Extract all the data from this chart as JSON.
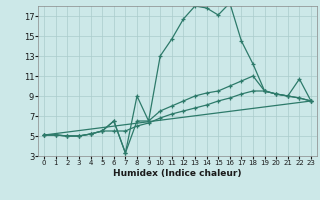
{
  "xlabel": "Humidex (Indice chaleur)",
  "xlim": [
    -0.5,
    23.5
  ],
  "ylim": [
    3,
    18
  ],
  "yticks": [
    3,
    5,
    7,
    9,
    11,
    13,
    15,
    17
  ],
  "xticks": [
    0,
    1,
    2,
    3,
    4,
    5,
    6,
    7,
    8,
    9,
    10,
    11,
    12,
    13,
    14,
    15,
    16,
    17,
    18,
    19,
    20,
    21,
    22,
    23
  ],
  "background_color": "#cce8e8",
  "grid_color": "#aacccc",
  "line_color": "#2d7a6a",
  "lines": [
    {
      "x": [
        0,
        1,
        2,
        3,
        4,
        5,
        6,
        7,
        8,
        9,
        10,
        11,
        12,
        13,
        14,
        15,
        16,
        17,
        18,
        19,
        20,
        21,
        22,
        23
      ],
      "y": [
        5.1,
        5.1,
        5.0,
        5.0,
        5.2,
        5.5,
        6.5,
        3.3,
        9.0,
        6.5,
        13.0,
        14.7,
        16.7,
        18.0,
        17.8,
        17.1,
        18.3,
        14.5,
        12.2,
        9.5,
        9.2,
        9.0,
        10.7,
        8.5
      ]
    },
    {
      "x": [
        0,
        1,
        2,
        3,
        4,
        5,
        6,
        7,
        8,
        9,
        10,
        11,
        12,
        13,
        14,
        15,
        16,
        17,
        18,
        19,
        20,
        21,
        22,
        23
      ],
      "y": [
        5.1,
        5.1,
        5.0,
        5.0,
        5.2,
        5.5,
        6.5,
        3.3,
        6.5,
        6.5,
        7.5,
        8.0,
        8.5,
        9.0,
        9.3,
        9.5,
        10.0,
        10.5,
        11.0,
        9.5,
        9.2,
        9.0,
        8.8,
        8.5
      ]
    },
    {
      "x": [
        0,
        1,
        2,
        3,
        4,
        5,
        6,
        7,
        8,
        9,
        10,
        11,
        12,
        13,
        14,
        15,
        16,
        17,
        18,
        19,
        20,
        21,
        22,
        23
      ],
      "y": [
        5.1,
        5.1,
        5.0,
        5.0,
        5.2,
        5.5,
        5.5,
        5.5,
        6.0,
        6.3,
        6.8,
        7.2,
        7.5,
        7.8,
        8.1,
        8.5,
        8.8,
        9.2,
        9.5,
        9.5,
        9.2,
        9.0,
        8.8,
        8.5
      ]
    },
    {
      "x": [
        0,
        23
      ],
      "y": [
        5.1,
        8.5
      ]
    }
  ]
}
